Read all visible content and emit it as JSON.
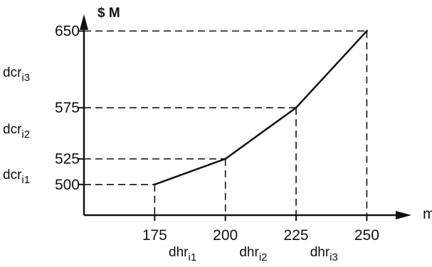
{
  "chart_data": {
    "type": "line",
    "y_unit_label": "$ M",
    "x_unit_label": "m",
    "x": [
      175,
      200,
      225,
      250
    ],
    "y": [
      500,
      525,
      575,
      650
    ],
    "x_tick_labels": [
      "175",
      "200",
      "225",
      "250"
    ],
    "y_tick_labels": [
      "500",
      "525",
      "575",
      "650"
    ],
    "xlim": [
      150,
      265
    ],
    "ylim": [
      470,
      665
    ],
    "grid": false,
    "guide_lines": "dashed",
    "y_segment_labels": [
      {
        "base": "dcr",
        "sub": "i1"
      },
      {
        "base": "dcr",
        "sub": "i2"
      },
      {
        "base": "dcr",
        "sub": "i3"
      }
    ],
    "x_segment_labels": [
      {
        "base": "dhr",
        "sub": "i1"
      },
      {
        "base": "dhr",
        "sub": "i2"
      },
      {
        "base": "dhr",
        "sub": "i3"
      }
    ]
  }
}
